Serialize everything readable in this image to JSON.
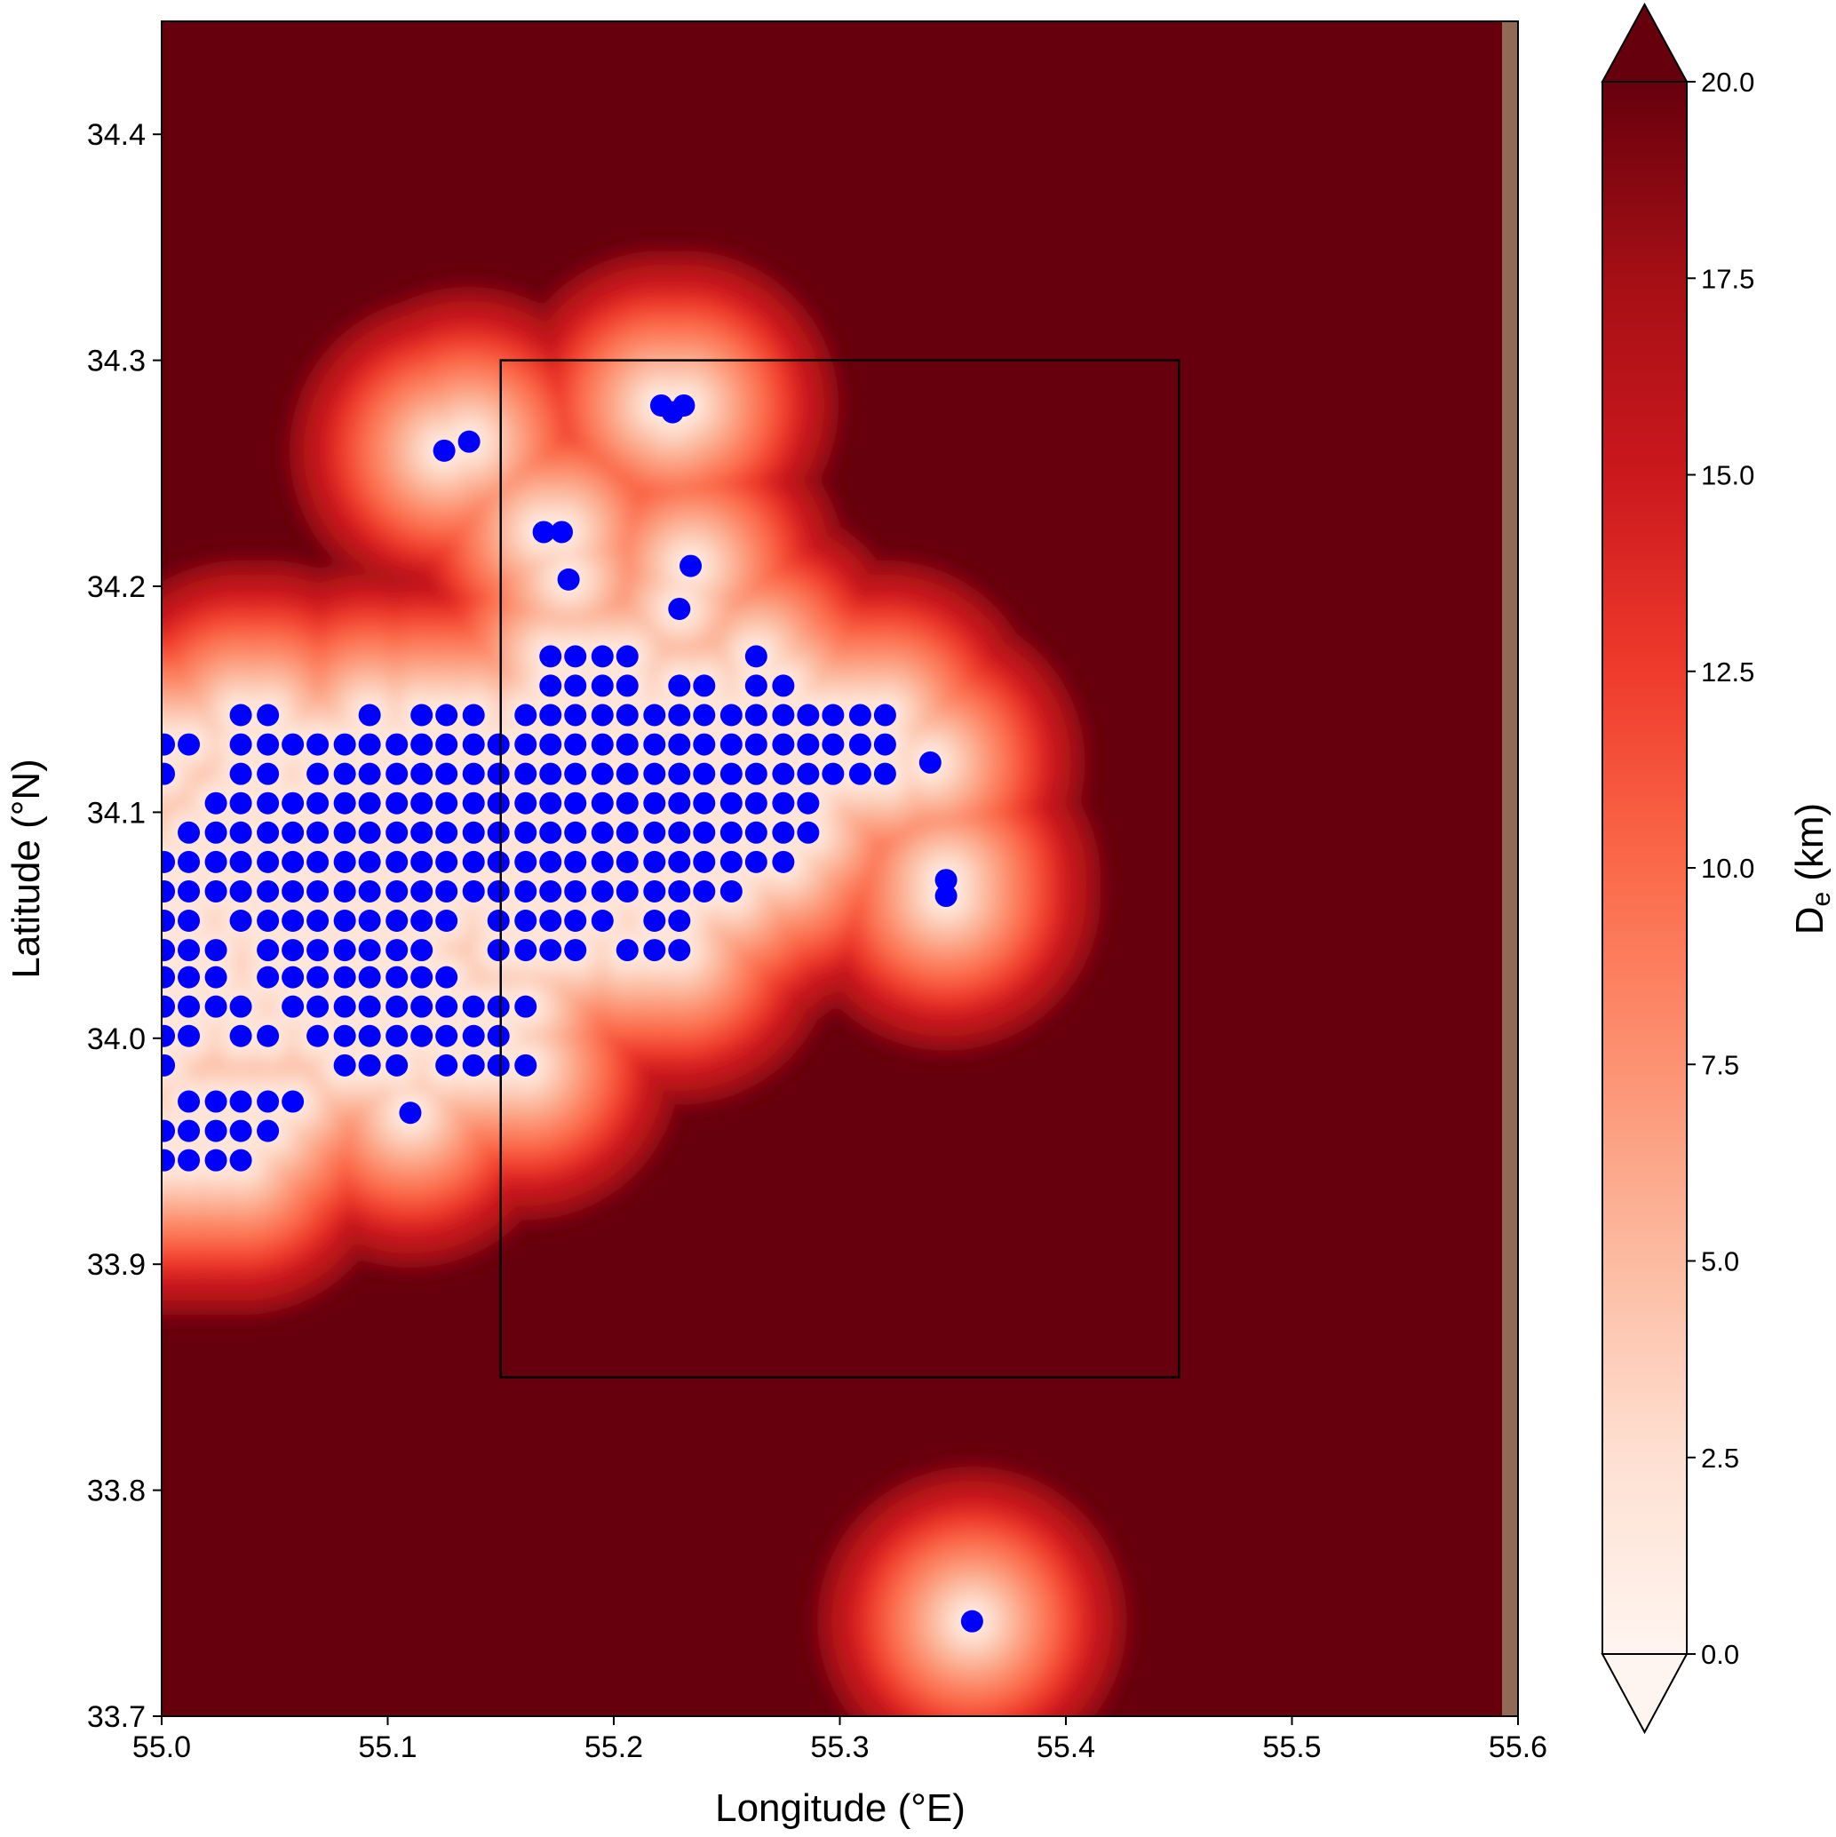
{
  "chart_data": {
    "type": "scatter",
    "xlabel": "Longitude (°E)",
    "ylabel": "Latitude (°N)",
    "xlim": [
      55.0,
      55.6
    ],
    "ylim": [
      33.7,
      34.45
    ],
    "xticks": [
      {
        "value": 55,
        "label": "55.0"
      },
      55.1,
      55.2,
      55.3,
      55.4,
      55.5,
      55.6
    ],
    "yticks": [
      33.7,
      33.8,
      33.9,
      {
        "value": 34,
        "label": "34.0"
      },
      34.1,
      34.2,
      34.3,
      34.4
    ],
    "color": "#0000ff",
    "box": {
      "xlim": [
        55.15,
        55.45
      ],
      "ylim": [
        33.85,
        34.3
      ]
    },
    "colorbar": {
      "label_base": "D",
      "label_subscript": "e",
      "label_unit": "(km)",
      "clim": [
        0,
        20
      ],
      "ticks": [
        {
          "value": 0,
          "label": "0.0"
        },
        2.5,
        {
          "value": 5,
          "label": "5.0"
        },
        7.5,
        {
          "value": 10,
          "label": "10.0"
        },
        12.5,
        {
          "value": 15,
          "label": "15.0"
        },
        17.5,
        {
          "value": 20,
          "label": "20.0"
        }
      ],
      "colormap": [
        "#fff5f0",
        "#fee0d2",
        "#fcbba1",
        "#fc9272",
        "#fb6a4a",
        "#ef3b2c",
        "#cb181d",
        "#a50f15",
        "#67000d"
      ],
      "extend": "both"
    },
    "x": [
      55.172,
      55.183,
      55.195,
      55.206,
      55.263,
      55.172,
      55.183,
      55.195,
      55.206,
      55.229,
      55.24,
      55.263,
      55.275,
      55.035,
      55.047,
      55.092,
      55.115,
      55.126,
      55.138,
      55.161,
      55.172,
      55.183,
      55.195,
      55.206,
      55.218,
      55.229,
      55.24,
      55.252,
      55.263,
      55.275,
      55.286,
      55.297,
      55.309,
      55.32,
      55.001,
      55.012,
      55.035,
      55.047,
      55.058,
      55.069,
      55.081,
      55.092,
      55.104,
      55.115,
      55.126,
      55.138,
      55.149,
      55.161,
      55.172,
      55.183,
      55.195,
      55.206,
      55.218,
      55.229,
      55.24,
      55.252,
      55.263,
      55.275,
      55.286,
      55.297,
      55.309,
      55.32,
      55.001,
      55.035,
      55.047,
      55.069,
      55.081,
      55.092,
      55.104,
      55.115,
      55.126,
      55.138,
      55.149,
      55.161,
      55.172,
      55.183,
      55.195,
      55.206,
      55.218,
      55.229,
      55.24,
      55.252,
      55.263,
      55.275,
      55.286,
      55.297,
      55.309,
      55.32,
      55.024,
      55.035,
      55.047,
      55.058,
      55.069,
      55.081,
      55.092,
      55.104,
      55.115,
      55.126,
      55.138,
      55.149,
      55.161,
      55.172,
      55.183,
      55.195,
      55.206,
      55.218,
      55.229,
      55.24,
      55.252,
      55.263,
      55.275,
      55.286,
      55.012,
      55.024,
      55.035,
      55.047,
      55.058,
      55.069,
      55.081,
      55.092,
      55.104,
      55.115,
      55.126,
      55.138,
      55.149,
      55.161,
      55.172,
      55.183,
      55.195,
      55.206,
      55.218,
      55.229,
      55.24,
      55.252,
      55.263,
      55.275,
      55.286,
      55.001,
      55.012,
      55.024,
      55.035,
      55.047,
      55.058,
      55.069,
      55.081,
      55.092,
      55.104,
      55.115,
      55.126,
      55.138,
      55.149,
      55.161,
      55.172,
      55.183,
      55.195,
      55.206,
      55.218,
      55.229,
      55.24,
      55.252,
      55.263,
      55.275,
      55.001,
      55.012,
      55.024,
      55.035,
      55.047,
      55.058,
      55.069,
      55.081,
      55.092,
      55.104,
      55.115,
      55.126,
      55.138,
      55.149,
      55.161,
      55.172,
      55.183,
      55.195,
      55.206,
      55.218,
      55.229,
      55.24,
      55.252,
      55.001,
      55.012,
      55.035,
      55.047,
      55.058,
      55.069,
      55.081,
      55.092,
      55.104,
      55.115,
      55.126,
      55.149,
      55.161,
      55.172,
      55.183,
      55.195,
      55.218,
      55.229,
      55.001,
      55.012,
      55.024,
      55.047,
      55.058,
      55.069,
      55.081,
      55.092,
      55.104,
      55.115,
      55.149,
      55.161,
      55.172,
      55.183,
      55.206,
      55.218,
      55.229,
      55.001,
      55.012,
      55.024,
      55.047,
      55.058,
      55.069,
      55.081,
      55.092,
      55.104,
      55.115,
      55.126,
      55.001,
      55.012,
      55.024,
      55.035,
      55.058,
      55.069,
      55.081,
      55.092,
      55.104,
      55.115,
      55.126,
      55.138,
      55.149,
      55.161,
      55.001,
      55.012,
      55.035,
      55.047,
      55.069,
      55.081,
      55.092,
      55.104,
      55.115,
      55.126,
      55.138,
      55.149,
      55.001,
      55.081,
      55.092,
      55.104,
      55.126,
      55.138,
      55.149,
      55.161,
      55.012,
      55.024,
      55.035,
      55.047,
      55.058,
      55.001,
      55.012,
      55.024,
      55.035,
      55.047,
      55.001,
      55.012,
      55.024,
      55.035,
      55.221,
      55.231,
      55.226,
      55.125,
      55.136,
      55.169,
      55.177,
      55.18,
      55.234,
      55.229,
      55.34,
      55.347,
      55.347,
      55.3585,
      55.11
    ],
    "y": [
      34.169,
      34.169,
      34.169,
      34.169,
      34.169,
      34.156,
      34.156,
      34.156,
      34.156,
      34.156,
      34.156,
      34.156,
      34.156,
      34.143,
      34.143,
      34.143,
      34.143,
      34.143,
      34.143,
      34.143,
      34.143,
      34.143,
      34.143,
      34.143,
      34.143,
      34.143,
      34.143,
      34.143,
      34.143,
      34.143,
      34.143,
      34.143,
      34.143,
      34.143,
      34.13,
      34.13,
      34.13,
      34.13,
      34.13,
      34.13,
      34.13,
      34.13,
      34.13,
      34.13,
      34.13,
      34.13,
      34.13,
      34.13,
      34.13,
      34.13,
      34.13,
      34.13,
      34.13,
      34.13,
      34.13,
      34.13,
      34.13,
      34.13,
      34.13,
      34.13,
      34.13,
      34.13,
      34.117,
      34.117,
      34.117,
      34.117,
      34.117,
      34.117,
      34.117,
      34.117,
      34.117,
      34.117,
      34.117,
      34.117,
      34.117,
      34.117,
      34.117,
      34.117,
      34.117,
      34.117,
      34.117,
      34.117,
      34.117,
      34.117,
      34.117,
      34.117,
      34.117,
      34.117,
      34.104,
      34.104,
      34.104,
      34.104,
      34.104,
      34.104,
      34.104,
      34.104,
      34.104,
      34.104,
      34.104,
      34.104,
      34.104,
      34.104,
      34.104,
      34.104,
      34.104,
      34.104,
      34.104,
      34.104,
      34.104,
      34.104,
      34.104,
      34.104,
      34.091,
      34.091,
      34.091,
      34.091,
      34.091,
      34.091,
      34.091,
      34.091,
      34.091,
      34.091,
      34.091,
      34.091,
      34.091,
      34.091,
      34.091,
      34.091,
      34.091,
      34.091,
      34.091,
      34.091,
      34.091,
      34.091,
      34.091,
      34.091,
      34.091,
      34.078,
      34.078,
      34.078,
      34.078,
      34.078,
      34.078,
      34.078,
      34.078,
      34.078,
      34.078,
      34.078,
      34.078,
      34.078,
      34.078,
      34.078,
      34.078,
      34.078,
      34.078,
      34.078,
      34.078,
      34.078,
      34.078,
      34.078,
      34.078,
      34.078,
      34.065,
      34.065,
      34.065,
      34.065,
      34.065,
      34.065,
      34.065,
      34.065,
      34.065,
      34.065,
      34.065,
      34.065,
      34.065,
      34.065,
      34.065,
      34.065,
      34.065,
      34.065,
      34.065,
      34.065,
      34.065,
      34.065,
      34.065,
      34.052,
      34.052,
      34.052,
      34.052,
      34.052,
      34.052,
      34.052,
      34.052,
      34.052,
      34.052,
      34.052,
      34.052,
      34.052,
      34.052,
      34.052,
      34.052,
      34.052,
      34.052,
      34.039,
      34.039,
      34.039,
      34.039,
      34.039,
      34.039,
      34.039,
      34.039,
      34.039,
      34.039,
      34.039,
      34.039,
      34.039,
      34.039,
      34.039,
      34.039,
      34.039,
      34.027,
      34.027,
      34.027,
      34.027,
      34.027,
      34.027,
      34.027,
      34.027,
      34.027,
      34.027,
      34.027,
      34.014,
      34.014,
      34.014,
      34.014,
      34.014,
      34.014,
      34.014,
      34.014,
      34.014,
      34.014,
      34.014,
      34.014,
      34.014,
      34.014,
      34.001,
      34.001,
      34.001,
      34.001,
      34.001,
      34.001,
      34.001,
      34.001,
      34.001,
      34.001,
      34.001,
      34.001,
      33.988,
      33.988,
      33.988,
      33.988,
      33.988,
      33.988,
      33.988,
      33.988,
      33.972,
      33.972,
      33.972,
      33.972,
      33.972,
      33.959,
      33.959,
      33.959,
      33.959,
      33.959,
      33.946,
      33.946,
      33.946,
      33.946,
      34.28,
      34.28,
      34.277,
      34.26,
      34.264,
      34.224,
      34.224,
      34.203,
      34.209,
      34.19,
      34.122,
      34.063,
      34.07,
      33.742,
      33.967
    ]
  }
}
